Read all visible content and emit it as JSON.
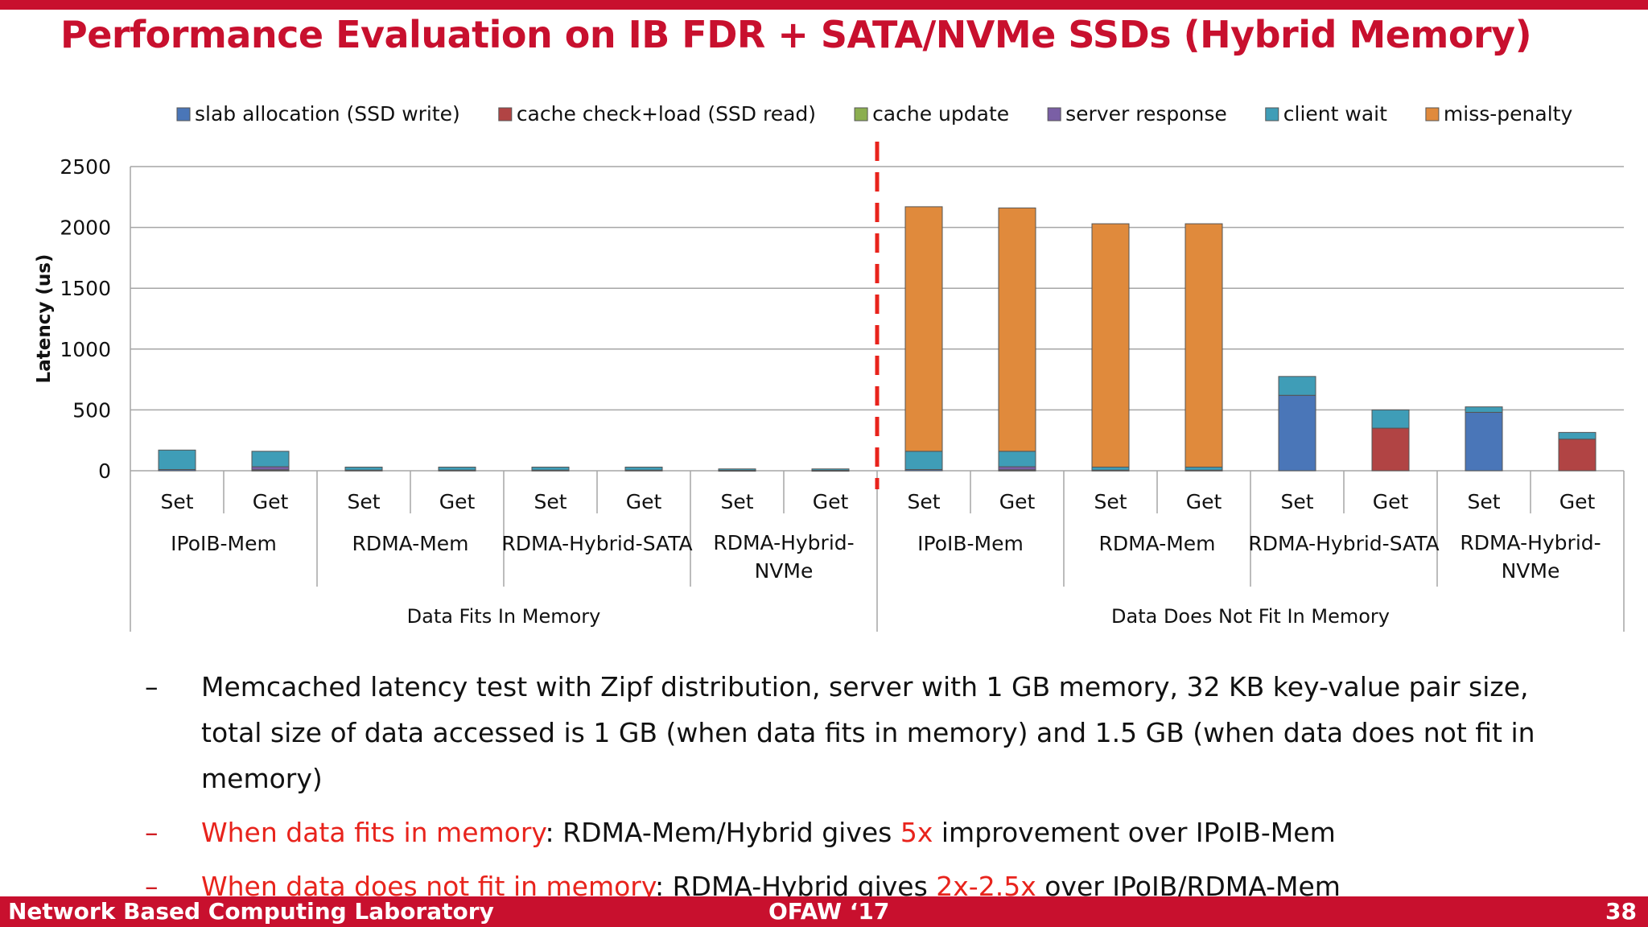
{
  "slide": {
    "title": "Performance Evaluation on IB FDR + SATA/NVMe SSDs (Hybrid Memory)",
    "bullets": [
      {
        "dash": "–",
        "highlight": "",
        "rest": "Memcached latency test with Zipf distribution, server with 1 GB memory, 32 KB key-value pair size, total size of data accessed is 1 GB (when data fits in memory) and 1.5 GB (when data does not fit in memory)",
        "highlight_value": "",
        "tail": ""
      },
      {
        "dash": "–",
        "highlight": "When data fits in memory",
        "rest": ": RDMA-Mem/Hybrid gives ",
        "highlight_value": "5x",
        "tail": " improvement over IPoIB-Mem"
      },
      {
        "dash": "–",
        "highlight": "When data does not fit in memory",
        "rest": ": RDMA-Hybrid gives ",
        "highlight_value": "2x-2.5x",
        "tail": " over IPoIB/RDMA-Mem"
      }
    ]
  },
  "footer": {
    "left": "Network Based Computing Laboratory",
    "center": "OFAW ‘17",
    "right": "38"
  },
  "chart_data": {
    "type": "bar",
    "stacked": true,
    "title": "",
    "ylabel": "Latency (us)",
    "xlabel": "",
    "ylim": [
      0,
      2500
    ],
    "yticks": [
      0,
      500,
      1000,
      1500,
      2000,
      2500
    ],
    "gridlines": true,
    "legend_position": "top",
    "categories": [
      "Set",
      "Get",
      "Set",
      "Get",
      "Set",
      "Get",
      "Set",
      "Get",
      "Set",
      "Get",
      "Set",
      "Get",
      "Set",
      "Get",
      "Set",
      "Get"
    ],
    "category_groups": [
      {
        "label": "IPoIB-Mem",
        "span": 2
      },
      {
        "label": "RDMA-Mem",
        "span": 2
      },
      {
        "label": "RDMA-Hybrid-SATA",
        "span": 2
      },
      {
        "label": "RDMA-Hybrid-NVMe",
        "lines": [
          "RDMA-Hybrid-",
          "NVMe"
        ],
        "span": 2
      },
      {
        "label": "IPoIB-Mem",
        "span": 2
      },
      {
        "label": "RDMA-Mem",
        "span": 2
      },
      {
        "label": "RDMA-Hybrid-SATA",
        "span": 2
      },
      {
        "label": "RDMA-Hybrid-NVMe",
        "lines": [
          "RDMA-Hybrid-",
          "NVMe"
        ],
        "span": 2
      }
    ],
    "super_groups": [
      {
        "label": "Data Fits In Memory",
        "span": 8
      },
      {
        "label": "Data Does Not Fit In Memory",
        "span": 8
      }
    ],
    "divider_after_index": 7,
    "series": [
      {
        "name": "slab allocation (SSD write)",
        "color": "#4a76b8",
        "values": [
          10,
          0,
          5,
          0,
          5,
          0,
          3,
          0,
          10,
          0,
          5,
          0,
          620,
          0,
          480,
          0
        ]
      },
      {
        "name": "cache check+load (SSD read)",
        "color": "#b14444",
        "values": [
          0,
          5,
          0,
          5,
          0,
          5,
          0,
          3,
          0,
          5,
          0,
          5,
          0,
          350,
          0,
          260
        ]
      },
      {
        "name": "cache update",
        "color": "#8bae50",
        "values": [
          0,
          3,
          0,
          0,
          0,
          0,
          0,
          0,
          0,
          3,
          0,
          0,
          0,
          0,
          0,
          0
        ]
      },
      {
        "name": "server response",
        "color": "#7a5fa5",
        "values": [
          0,
          25,
          0,
          0,
          0,
          0,
          0,
          0,
          0,
          25,
          0,
          0,
          0,
          0,
          0,
          0
        ]
      },
      {
        "name": "client wait",
        "color": "#3f9db7",
        "values": [
          160,
          127,
          25,
          25,
          25,
          25,
          12,
          12,
          150,
          127,
          25,
          25,
          155,
          150,
          45,
          55
        ]
      },
      {
        "name": "miss-penalty",
        "color": "#e08a3c",
        "values": [
          0,
          0,
          0,
          0,
          0,
          0,
          0,
          0,
          2010,
          2000,
          2000,
          2000,
          0,
          0,
          0,
          0
        ]
      }
    ]
  }
}
